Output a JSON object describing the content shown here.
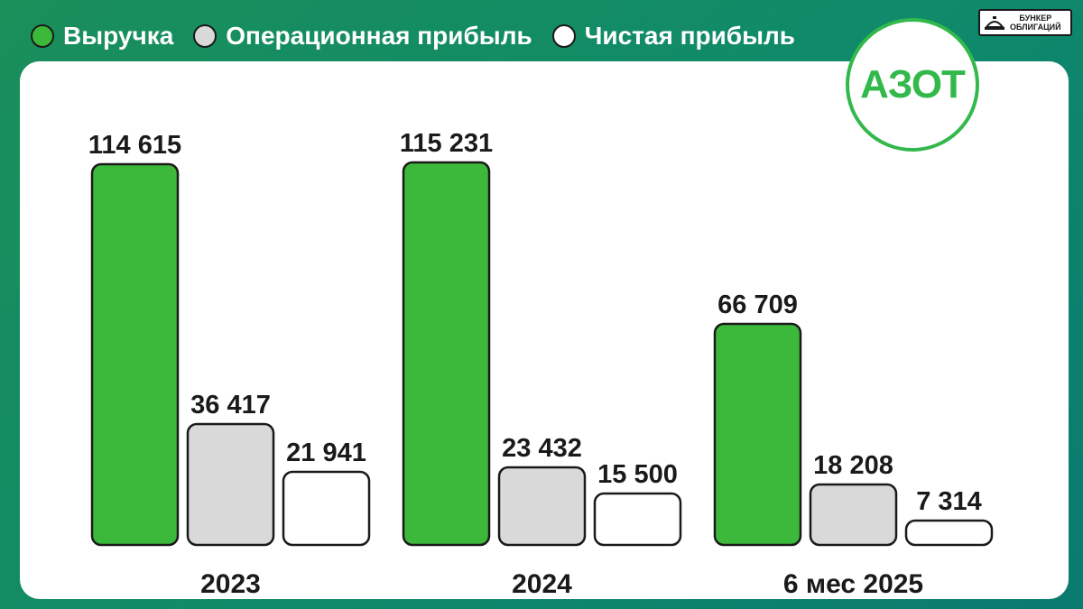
{
  "legend": {
    "items": [
      {
        "label": "Выручка",
        "color": "#3cb93b"
      },
      {
        "label": "Операционная прибыль",
        "color": "#d9d9d9"
      },
      {
        "label": "Чистая прибыль",
        "color": "#ffffff"
      }
    ]
  },
  "brand": {
    "line1": "БУНКЕР",
    "line2": "ОБЛИГАЦИЙ",
    "icon": "bunker-icon"
  },
  "logo": {
    "text": "АЗОТ",
    "color": "#33b84c"
  },
  "colors": {
    "revenue": "#3cb93b",
    "operating": "#d9d9d9",
    "net": "#ffffff",
    "outline": "#1a1a1a"
  },
  "chart_data": {
    "type": "bar",
    "categories": [
      "2023",
      "2024",
      "6 мес 2025"
    ],
    "series": [
      {
        "name": "Выручка",
        "values": [
          114615,
          115231,
          66709
        ],
        "labels": [
          "114 615",
          "115 231",
          "66 709"
        ]
      },
      {
        "name": "Операционная прибыль",
        "values": [
          36417,
          23432,
          18208
        ],
        "labels": [
          "36 417",
          "23 432",
          "18 208"
        ]
      },
      {
        "name": "Чистая прибыль",
        "values": [
          21941,
          15500,
          7314
        ],
        "labels": [
          "21 941",
          "15 500",
          "7 314"
        ]
      }
    ],
    "title": "",
    "xlabel": "",
    "ylabel": "",
    "ylim": [
      0,
      115231
    ],
    "grid": false,
    "legend": "top-left"
  }
}
